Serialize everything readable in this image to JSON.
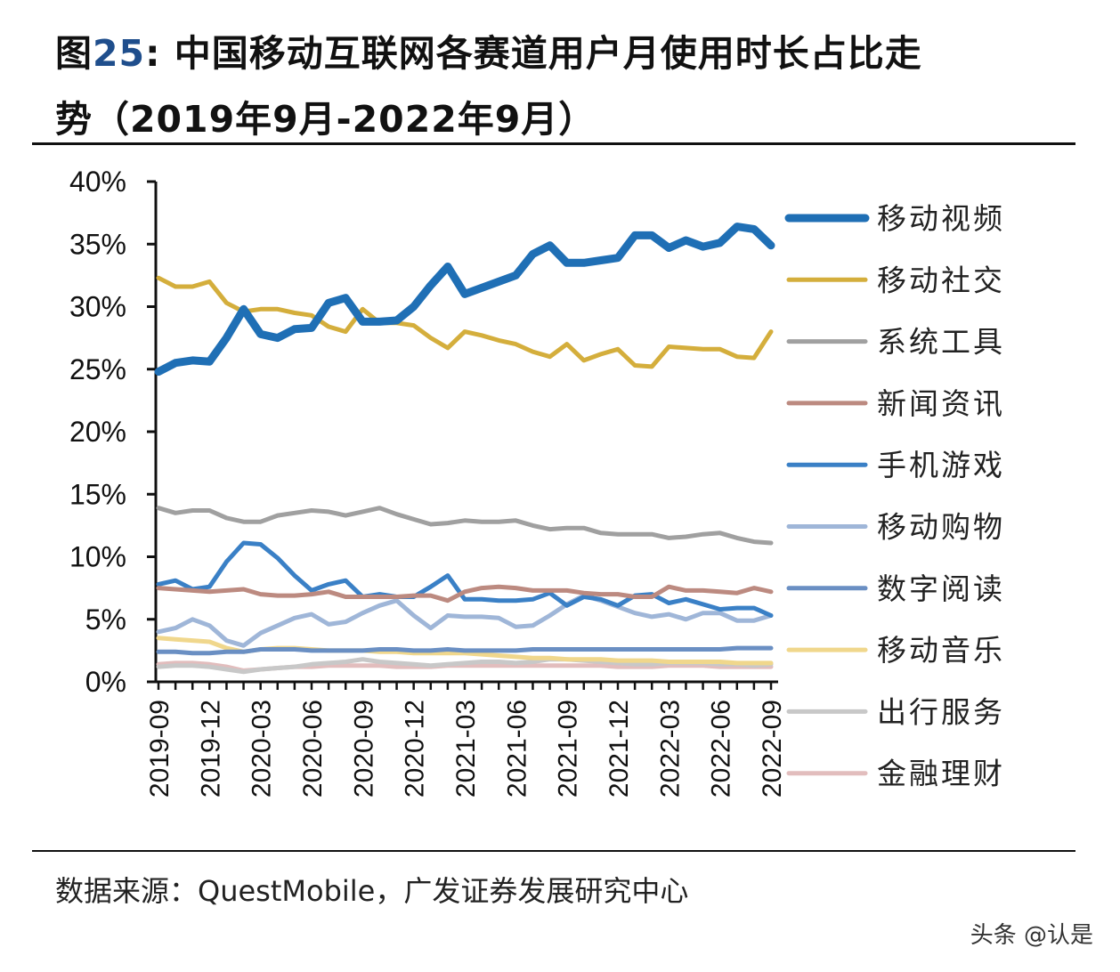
{
  "title": {
    "prefix": "图",
    "number": "25",
    "line1": ": 中国移动互联网各赛道用户月使用时长占比走",
    "line2": "势（2019年9月-2022年9月）"
  },
  "source": "数据来源：QuestMobile，广发证券发展研究中心",
  "watermark": "头条 @认是",
  "chart_data": {
    "type": "line",
    "title": "",
    "xlabel": "",
    "ylabel": "",
    "ylim": [
      0,
      40
    ],
    "yticks": [
      "0%",
      "5%",
      "10%",
      "15%",
      "20%",
      "25%",
      "30%",
      "35%",
      "40%"
    ],
    "xticks": [
      "2019-09",
      "2019-12",
      "2020-03",
      "2020-06",
      "2020-09",
      "2020-12",
      "2021-03",
      "2021-06",
      "2021-09",
      "2021-12",
      "2022-03",
      "2022-06",
      "2022-09"
    ],
    "x_range": [
      "2019-09",
      "2022-09"
    ],
    "grid": false,
    "legend": "right",
    "series": [
      {
        "name": "移动视频",
        "color": "#1f6fb5",
        "values": [
          24.8,
          25.5,
          25.7,
          25.6,
          27.5,
          29.8,
          27.8,
          27.5,
          28.2,
          28.3,
          30.3,
          30.7,
          28.8,
          28.8,
          28.9,
          30.0,
          31.7,
          33.2,
          31.0,
          31.5,
          32.0,
          32.5,
          34.2,
          34.9,
          33.5,
          33.5,
          33.7,
          33.9,
          35.7,
          35.7,
          34.7,
          35.3,
          34.8,
          35.1,
          36.4,
          36.2,
          34.9
        ]
      },
      {
        "name": "移动社交",
        "color": "#d4ae3c",
        "values": [
          32.3,
          31.6,
          31.6,
          32.0,
          30.3,
          29.6,
          29.8,
          29.8,
          29.5,
          29.3,
          28.4,
          28.0,
          29.8,
          28.7,
          28.7,
          28.5,
          27.5,
          26.7,
          28.0,
          27.7,
          27.3,
          27.0,
          26.4,
          26.0,
          27.0,
          25.7,
          26.2,
          26.6,
          25.3,
          25.2,
          26.8,
          26.7,
          26.6,
          26.6,
          26.0,
          25.9,
          28.0
        ]
      },
      {
        "name": "系统工具",
        "color": "#a0a0a0",
        "values": [
          13.9,
          13.5,
          13.7,
          13.7,
          13.1,
          12.8,
          12.8,
          13.3,
          13.5,
          13.7,
          13.6,
          13.3,
          13.6,
          13.9,
          13.4,
          13.0,
          12.6,
          12.7,
          12.9,
          12.8,
          12.8,
          12.9,
          12.5,
          12.2,
          12.3,
          12.3,
          11.9,
          11.8,
          11.8,
          11.8,
          11.5,
          11.6,
          11.8,
          11.9,
          11.5,
          11.2,
          11.1
        ]
      },
      {
        "name": "新闻资讯",
        "color": "#bc8a80",
        "values": [
          7.5,
          7.4,
          7.3,
          7.2,
          7.3,
          7.4,
          7.0,
          6.9,
          6.9,
          7.0,
          7.2,
          6.8,
          6.8,
          6.8,
          6.8,
          6.9,
          6.9,
          6.5,
          7.2,
          7.5,
          7.6,
          7.5,
          7.3,
          7.3,
          7.3,
          7.1,
          7.0,
          7.0,
          6.8,
          6.8,
          7.6,
          7.3,
          7.3,
          7.2,
          7.1,
          7.5,
          7.2
        ]
      },
      {
        "name": "手机游戏",
        "color": "#3a80c6",
        "values": [
          7.8,
          8.1,
          7.4,
          7.6,
          9.6,
          11.1,
          11.0,
          9.9,
          8.5,
          7.3,
          7.8,
          8.1,
          6.8,
          7.0,
          6.8,
          6.8,
          7.6,
          8.5,
          6.6,
          6.6,
          6.5,
          6.5,
          6.6,
          7.1,
          6.1,
          6.8,
          6.6,
          6.1,
          6.9,
          7.0,
          6.3,
          6.6,
          6.2,
          5.8,
          5.9,
          5.9,
          5.3
        ]
      },
      {
        "name": "移动购物",
        "color": "#9fb6d8",
        "values": [
          4.0,
          4.3,
          5.0,
          4.5,
          3.3,
          2.9,
          3.9,
          4.5,
          5.1,
          5.4,
          4.6,
          4.8,
          5.5,
          6.1,
          6.5,
          5.3,
          4.3,
          5.3,
          5.2,
          5.2,
          5.1,
          4.4,
          4.5,
          5.3,
          6.2,
          6.9,
          6.5,
          6.0,
          5.5,
          5.2,
          5.4,
          5.0,
          5.5,
          5.5,
          4.9,
          4.9,
          5.3
        ]
      },
      {
        "name": "数字阅读",
        "color": "#6a8fc3",
        "values": [
          2.4,
          2.4,
          2.3,
          2.3,
          2.4,
          2.4,
          2.6,
          2.6,
          2.6,
          2.5,
          2.5,
          2.5,
          2.5,
          2.6,
          2.6,
          2.5,
          2.5,
          2.6,
          2.5,
          2.5,
          2.5,
          2.5,
          2.6,
          2.6,
          2.6,
          2.6,
          2.6,
          2.6,
          2.6,
          2.6,
          2.6,
          2.6,
          2.6,
          2.6,
          2.7,
          2.7,
          2.7
        ]
      },
      {
        "name": "移动音乐",
        "color": "#f0d78c",
        "values": [
          3.5,
          3.4,
          3.3,
          3.2,
          2.7,
          2.4,
          2.6,
          2.7,
          2.7,
          2.6,
          2.5,
          2.5,
          2.5,
          2.4,
          2.4,
          2.3,
          2.3,
          2.3,
          2.3,
          2.2,
          2.1,
          2.0,
          1.9,
          1.9,
          1.8,
          1.8,
          1.8,
          1.7,
          1.7,
          1.7,
          1.6,
          1.6,
          1.6,
          1.6,
          1.5,
          1.5,
          1.5
        ]
      },
      {
        "name": "出行服务",
        "color": "#c8c8c8",
        "values": [
          1.2,
          1.3,
          1.3,
          1.2,
          1.0,
          0.8,
          1.0,
          1.1,
          1.2,
          1.4,
          1.5,
          1.6,
          1.8,
          1.6,
          1.5,
          1.4,
          1.3,
          1.4,
          1.5,
          1.6,
          1.6,
          1.5,
          1.6,
          1.8,
          1.8,
          1.7,
          1.6,
          1.5,
          1.4,
          1.4,
          1.5,
          1.5,
          1.5,
          1.4,
          1.4,
          1.3,
          1.4
        ]
      },
      {
        "name": "金融理财",
        "color": "#e2bdbd",
        "values": [
          1.4,
          1.5,
          1.5,
          1.4,
          1.2,
          0.9,
          1.0,
          1.1,
          1.2,
          1.2,
          1.3,
          1.3,
          1.3,
          1.3,
          1.2,
          1.2,
          1.2,
          1.3,
          1.3,
          1.3,
          1.3,
          1.3,
          1.3,
          1.3,
          1.3,
          1.3,
          1.3,
          1.2,
          1.2,
          1.2,
          1.3,
          1.3,
          1.3,
          1.2,
          1.2,
          1.2,
          1.2
        ]
      }
    ]
  }
}
